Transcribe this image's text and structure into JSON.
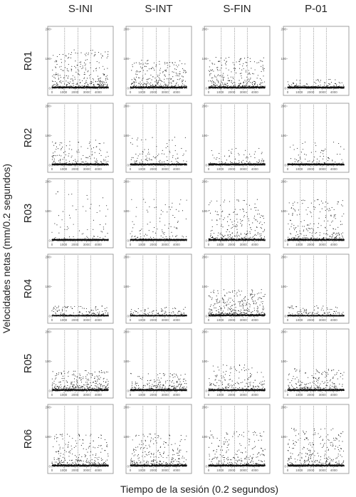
{
  "chart_data": {
    "type": "scatter",
    "layout": "small-multiples",
    "columns": [
      "S-INI",
      "S-INT",
      "S-FIN",
      "P-01"
    ],
    "rows": [
      "R01",
      "R02",
      "R03",
      "R04",
      "R05",
      "R06"
    ],
    "xlabel": "Tiempo de la sesión (0.2 segundos)",
    "ylabel": "Velocidades netas (mm/0.2 segundos)",
    "xlim": [
      0,
      5000
    ],
    "x_ticks": [
      0,
      1000,
      2000,
      3000,
      4000
    ],
    "x_tick_labels": [
      "0",
      "1000",
      "2000",
      "3000",
      "4000"
    ],
    "ylim": [
      0,
      200
    ],
    "y_ticks": [
      0,
      100,
      200
    ],
    "y_tick_labels": [
      "0",
      "100",
      "200"
    ],
    "reference_lines_x": [
      1100,
      2250,
      3350
    ],
    "grid": false,
    "legend": "none",
    "panels": [
      [
        {
          "baseline": 5,
          "density": 0.35,
          "peak": 130,
          "end": 4900
        },
        {
          "baseline": 5,
          "density": 0.32,
          "peak": 95,
          "end": 4900
        },
        {
          "baseline": 5,
          "density": 0.35,
          "peak": 105,
          "end": 4900
        },
        {
          "baseline": 5,
          "density": 0.08,
          "peak": 35,
          "end": 4900
        }
      ],
      [
        {
          "baseline": 5,
          "density": 0.15,
          "peak": 85,
          "end": 4900
        },
        {
          "baseline": 5,
          "density": 0.14,
          "peak": 95,
          "end": 4900
        },
        {
          "baseline": 5,
          "density": 0.1,
          "peak": 60,
          "end": 4900
        },
        {
          "baseline": 5,
          "density": 0.1,
          "peak": 80,
          "end": 4900
        }
      ],
      [
        {
          "baseline": 5,
          "density": 0.1,
          "peak": 170,
          "end": 4900
        },
        {
          "baseline": 5,
          "density": 0.12,
          "peak": 140,
          "end": 4900
        },
        {
          "baseline": 5,
          "density": 0.28,
          "peak": 140,
          "end": 4900
        },
        {
          "baseline": 5,
          "density": 0.3,
          "peak": 140,
          "end": 4900
        }
      ],
      [
        {
          "baseline": 3,
          "density": 0.15,
          "peak": 35,
          "end": 4900
        },
        {
          "baseline": 3,
          "density": 0.1,
          "peak": 30,
          "end": 4900
        },
        {
          "baseline": 5,
          "density": 0.35,
          "peak": 90,
          "end": 4900
        },
        {
          "baseline": 3,
          "density": 0.12,
          "peak": 35,
          "end": 4900
        }
      ],
      [
        {
          "baseline": 5,
          "density": 0.35,
          "peak": 70,
          "end": 4900
        },
        {
          "baseline": 5,
          "density": 0.25,
          "peak": 60,
          "end": 4900
        },
        {
          "baseline": 5,
          "density": 0.2,
          "peak": 90,
          "end": 4900
        },
        {
          "baseline": 5,
          "density": 0.25,
          "peak": 75,
          "end": 4900
        }
      ],
      [
        {
          "baseline": 5,
          "density": 0.3,
          "peak": 110,
          "end": 4900
        },
        {
          "baseline": 5,
          "density": 0.3,
          "peak": 110,
          "end": 4900
        },
        {
          "baseline": 5,
          "density": 0.3,
          "peak": 120,
          "end": 4900
        },
        {
          "baseline": 5,
          "density": 0.3,
          "peak": 130,
          "end": 4900
        }
      ]
    ]
  }
}
